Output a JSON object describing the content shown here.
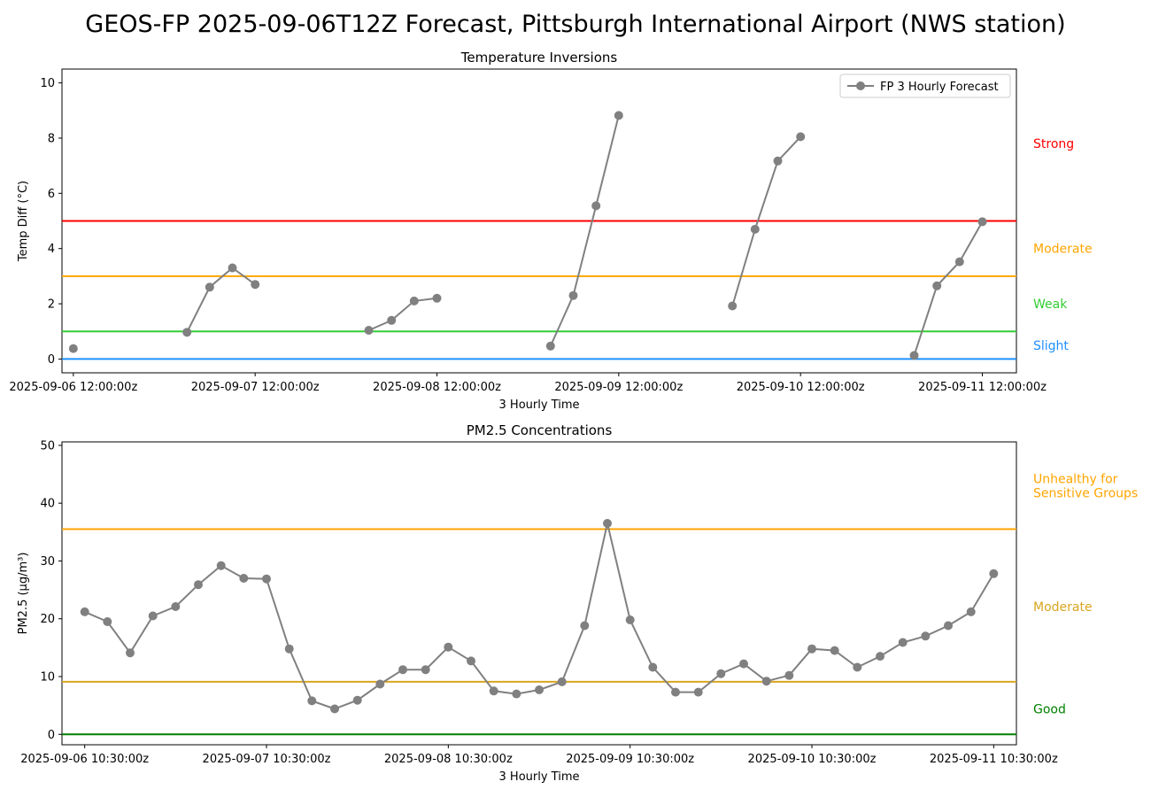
{
  "figure": {
    "title": "GEOS-FP 2025-09-06T12Z Forecast, Pittsburgh International Airport (NWS station)"
  },
  "chart_data": [
    {
      "type": "line",
      "title": "Temperature Inversions",
      "xlabel": "3 Hourly Time",
      "ylabel": "Temp Diff (°C)",
      "ylim": [
        -0.5,
        10.5
      ],
      "yticks": [
        0,
        2,
        4,
        6,
        8,
        10
      ],
      "xticks": [
        "2025-09-06 12:00:00z",
        "2025-09-07 12:00:00z",
        "2025-09-08 12:00:00z",
        "2025-09-09 12:00:00z",
        "2025-09-10 12:00:00z",
        "2025-09-11 12:00:00z"
      ],
      "xlim_hours": [
        -1.5,
        124.5
      ],
      "legend": {
        "location": "top-right",
        "entries": [
          "FP 3 Hourly Forecast"
        ]
      },
      "series": [
        {
          "name": "FP 3 Hourly Forecast",
          "color": "#808080",
          "segments": [
            [
              [
                0,
                0.38
              ]
            ],
            [
              [
                15,
                0.97
              ],
              [
                18,
                2.6
              ],
              [
                21,
                3.3
              ],
              [
                24,
                2.7
              ]
            ],
            [
              [
                39,
                1.04
              ],
              [
                42,
                1.4
              ],
              [
                45,
                2.1
              ],
              [
                48,
                2.2
              ]
            ],
            [
              [
                63,
                0.47
              ],
              [
                66,
                2.3
              ],
              [
                69,
                5.55
              ],
              [
                72,
                8.82
              ]
            ],
            [
              [
                87,
                1.92
              ],
              [
                90,
                4.7
              ],
              [
                93,
                7.17
              ],
              [
                96,
                8.05
              ]
            ],
            [
              [
                111,
                0.13
              ],
              [
                114,
                2.65
              ],
              [
                117,
                3.52
              ],
              [
                120,
                4.97
              ]
            ]
          ]
        }
      ],
      "thresholds": [
        {
          "label": "Strong",
          "value": 5,
          "color": "#ff0000",
          "label_y": 7.8
        },
        {
          "label": "Moderate",
          "value": 3,
          "color": "#ffa500",
          "label_y": 4.0
        },
        {
          "label": "Weak",
          "value": 1,
          "color": "#32cd32",
          "label_y": 2.0
        },
        {
          "label": "Slight",
          "value": 0,
          "color": "#1e90ff",
          "label_y": 0.5
        }
      ]
    },
    {
      "type": "line",
      "title": "PM2.5 Concentrations",
      "xlabel": "3 Hourly Time",
      "ylabel": "PM2.5 (µg/m³)",
      "ylim": [
        -1.8,
        50.6
      ],
      "yticks": [
        0,
        10,
        20,
        30,
        40,
        50
      ],
      "xticks": [
        "2025-09-06 10:30:00z",
        "2025-09-07 10:30:00z",
        "2025-09-08 10:30:00z",
        "2025-09-09 10:30:00z",
        "2025-09-10 10:30:00z",
        "2025-09-11 10:30:00z"
      ],
      "xlim_hours": [
        -3,
        123
      ],
      "series": [
        {
          "name": "",
          "color": "#808080",
          "x_hours": [
            0,
            3,
            6,
            9,
            12,
            15,
            18,
            21,
            24,
            27,
            30,
            33,
            36,
            39,
            42,
            45,
            48,
            51,
            54,
            57,
            60,
            63,
            66,
            69,
            72,
            75,
            78,
            81,
            84,
            87,
            90,
            93,
            96,
            99,
            102,
            105,
            108,
            111,
            114,
            117,
            120
          ],
          "values": [
            21.2,
            19.5,
            14.1,
            20.5,
            22.1,
            25.9,
            29.2,
            27.0,
            26.9,
            14.8,
            5.8,
            4.4,
            5.9,
            8.7,
            11.2,
            11.2,
            15.1,
            12.7,
            7.5,
            7.0,
            7.7,
            9.1,
            18.8,
            36.5,
            19.8,
            11.6,
            7.3,
            7.3,
            10.5,
            12.2,
            9.2,
            10.2,
            14.8,
            14.5,
            11.6,
            13.5,
            15.9,
            17.0,
            18.8,
            21.2,
            27.8
          ]
        }
      ],
      "thresholds": [
        {
          "label": "Unhealthy for\nSensitive Groups",
          "value": 35.5,
          "color": "#ffa500",
          "label_y": 43.0
        },
        {
          "label": "Moderate",
          "value": 9.1,
          "color": "#daa520",
          "label_y": 22.1
        },
        {
          "label": "Good",
          "value": 0,
          "color": "#008000",
          "label_y": 4.4
        }
      ]
    }
  ]
}
